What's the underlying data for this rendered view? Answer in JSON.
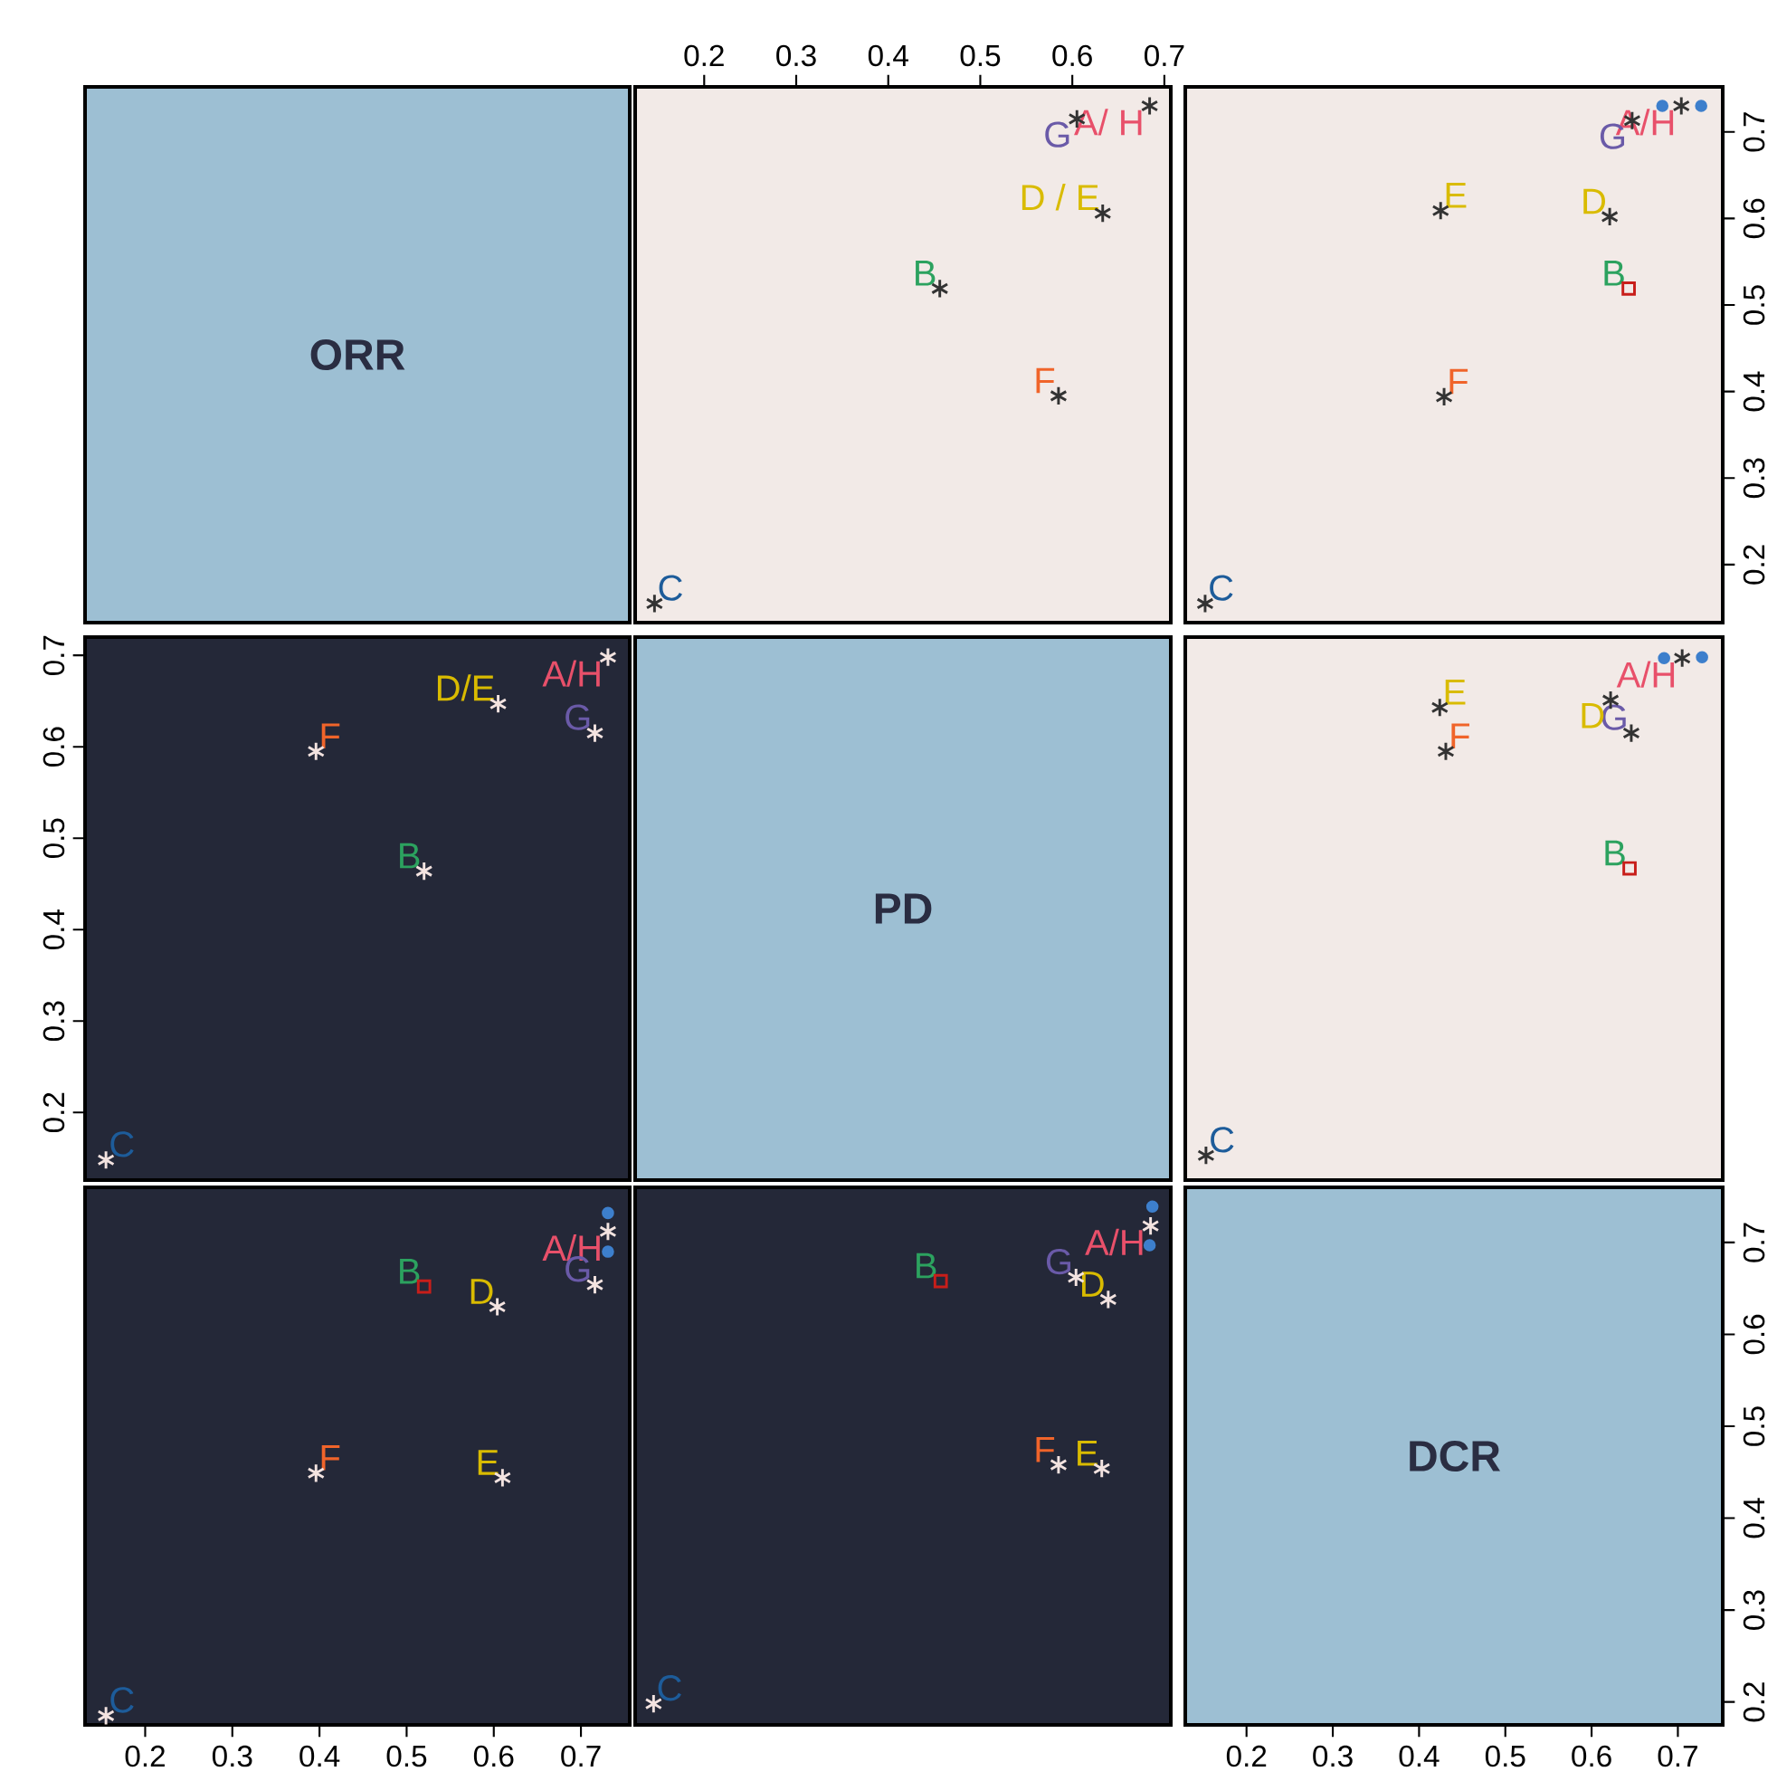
{
  "chart_data": [
    {
      "type": "other",
      "title": "ORR"
    },
    {
      "type": "scatter",
      "xlim": [
        0.125,
        0.707
      ],
      "ylim": [
        0.133,
        0.752
      ],
      "xticks": [
        0.2,
        0.3,
        0.4,
        0.5,
        0.6,
        0.7
      ],
      "tick_labels": "x",
      "series": [
        {
          "name": "A/ H",
          "color": "#333333",
          "marker": "cross",
          "x": [
            0.684
          ],
          "values": [
            0.73
          ]
        },
        {
          "name": "B",
          "color": "#333333",
          "marker": "cross",
          "x": [
            0.456
          ],
          "values": [
            0.519
          ]
        },
        {
          "name": "C",
          "color": "#333333",
          "marker": "cross",
          "x": [
            0.146
          ],
          "values": [
            0.155
          ]
        },
        {
          "name": "F",
          "color": "#333333",
          "marker": "cross",
          "x": [
            0.585
          ],
          "values": [
            0.395
          ]
        },
        {
          "name": "G",
          "color": "#333333",
          "marker": "cross",
          "x": [
            0.605
          ],
          "values": [
            0.715
          ]
        },
        {
          "name": "D / E",
          "color": "#333333",
          "marker": "cross",
          "x": [
            0.633
          ],
          "values": [
            0.606
          ]
        }
      ]
    },
    {
      "type": "scatter",
      "xlim": [
        0.129,
        0.752
      ],
      "ylim": [
        0.133,
        0.752
      ],
      "yticks": [
        0.2,
        0.3,
        0.4,
        0.5,
        0.6,
        0.7
      ],
      "tick_labels": "y",
      "series": [
        {
          "name": "A/H",
          "color": "#333333",
          "marker": "cross",
          "x": [
            0.704
          ],
          "values": [
            0.73
          ]
        },
        {
          "name": "B",
          "color": "#c81e1a",
          "marker": "square",
          "x": [
            0.643
          ],
          "values": [
            0.519
          ]
        },
        {
          "name": "C",
          "color": "#333333",
          "marker": "cross",
          "x": [
            0.152
          ],
          "values": [
            0.155
          ]
        },
        {
          "name": "F",
          "color": "#333333",
          "marker": "cross",
          "x": [
            0.429
          ],
          "values": [
            0.394
          ]
        },
        {
          "name": "G",
          "color": "#333333",
          "marker": "cross",
          "x": [
            0.647
          ],
          "values": [
            0.713
          ]
        },
        {
          "name": "D",
          "color": "#333333",
          "marker": "cross",
          "x": [
            0.621
          ],
          "values": [
            0.602
          ]
        },
        {
          "name": "E",
          "color": "#333333",
          "marker": "cross",
          "x": [
            0.425
          ],
          "values": [
            0.609
          ]
        },
        {
          "color": "#3d7fcc",
          "marker": "circle",
          "x": [
            0.682,
            0.727
          ],
          "values": [
            0.73,
            0.73
          ]
        }
      ]
    },
    {
      "type": "scatter",
      "xlim": [
        0.131,
        0.756
      ],
      "ylim": [
        0.126,
        0.72
      ],
      "yticks": [
        0.2,
        0.3,
        0.4,
        0.5,
        0.6,
        0.7
      ],
      "tick_labels": "y",
      "series": [
        {
          "name": "A/H",
          "color": "#f3e3e0",
          "marker": "cross",
          "x": [
            0.731
          ],
          "values": [
            0.698
          ]
        },
        {
          "name": "B",
          "color": "#f3e3e0",
          "marker": "cross",
          "x": [
            0.52
          ],
          "values": [
            0.464
          ]
        },
        {
          "name": "C",
          "color": "#f3e3e0",
          "marker": "cross",
          "x": [
            0.155
          ],
          "values": [
            0.148
          ]
        },
        {
          "name": "F",
          "color": "#f3e3e0",
          "marker": "cross",
          "x": [
            0.396
          ],
          "values": [
            0.595
          ]
        },
        {
          "name": "G",
          "color": "#f3e3e0",
          "marker": "cross",
          "x": [
            0.716
          ],
          "values": [
            0.615
          ]
        },
        {
          "name": "D/E",
          "color": "#f3e3e0",
          "marker": "cross",
          "x": [
            0.605
          ],
          "values": [
            0.647
          ]
        }
      ]
    },
    {
      "type": "other",
      "title": "PD"
    },
    {
      "type": "scatter",
      "xlim": [
        0.129,
        0.752
      ],
      "ylim": [
        0.126,
        0.72
      ],
      "tick_labels": false,
      "series": [
        {
          "name": "A/H",
          "color": "#333333",
          "marker": "cross",
          "x": [
            0.705
          ],
          "values": [
            0.697
          ]
        },
        {
          "name": "B",
          "color": "#c81e1a",
          "marker": "square",
          "x": [
            0.644
          ],
          "values": [
            0.467
          ]
        },
        {
          "name": "C",
          "color": "#333333",
          "marker": "cross",
          "x": [
            0.153
          ],
          "values": [
            0.153
          ]
        },
        {
          "name": "F",
          "color": "#333333",
          "marker": "cross",
          "x": [
            0.431
          ],
          "values": [
            0.595
          ]
        },
        {
          "name": "G",
          "color": "#333333",
          "marker": "cross",
          "x": [
            0.646
          ],
          "values": [
            0.615
          ]
        },
        {
          "name": "D",
          "color": "#333333",
          "marker": "cross",
          "x": [
            0.622
          ],
          "values": [
            0.651
          ]
        },
        {
          "name": "E",
          "color": "#333333",
          "marker": "cross",
          "x": [
            0.424
          ],
          "values": [
            0.643
          ]
        },
        {
          "color": "#3d7fcc",
          "marker": "circle",
          "x": [
            0.684,
            0.728
          ],
          "values": [
            0.697,
            0.698
          ]
        }
      ]
    },
    {
      "type": "scatter",
      "xlim": [
        0.131,
        0.756
      ],
      "ylim": [
        0.175,
        0.76
      ],
      "xticks": [
        0.2,
        0.3,
        0.4,
        0.5,
        0.6,
        0.7
      ],
      "tick_labels": "x",
      "series": [
        {
          "name": "A/H",
          "color": "#f3e3e0",
          "marker": "cross",
          "x": [
            0.731
          ],
          "values": [
            0.712
          ]
        },
        {
          "name": "B",
          "color": "#c81e1a",
          "marker": "square",
          "x": [
            0.52
          ],
          "values": [
            0.652
          ]
        },
        {
          "name": "C",
          "color": "#f3e3e0",
          "marker": "cross",
          "x": [
            0.155
          ],
          "values": [
            0.185
          ]
        },
        {
          "name": "F",
          "color": "#f3e3e0",
          "marker": "cross",
          "x": [
            0.396
          ],
          "values": [
            0.449
          ]
        },
        {
          "name": "G",
          "color": "#f3e3e0",
          "marker": "cross",
          "x": [
            0.716
          ],
          "values": [
            0.654
          ]
        },
        {
          "name": "D",
          "color": "#f3e3e0",
          "marker": "cross",
          "x": [
            0.604
          ],
          "values": [
            0.63
          ]
        },
        {
          "name": "E",
          "color": "#f3e3e0",
          "marker": "cross",
          "x": [
            0.61
          ],
          "values": [
            0.444
          ]
        },
        {
          "color": "#3d7fcc",
          "marker": "circle",
          "x": [
            0.731,
            0.731
          ],
          "values": [
            0.732,
            0.69
          ]
        }
      ]
    },
    {
      "type": "scatter",
      "xlim": [
        0.125,
        0.707
      ],
      "ylim": [
        0.175,
        0.76
      ],
      "tick_labels": false,
      "series": [
        {
          "name": "A/H",
          "color": "#f3e3e0",
          "marker": "cross",
          "x": [
            0.685
          ],
          "values": [
            0.718
          ]
        },
        {
          "name": "B",
          "color": "#c81e1a",
          "marker": "square",
          "x": [
            0.457
          ],
          "values": [
            0.658
          ]
        },
        {
          "name": "C",
          "color": "#f3e3e0",
          "marker": "cross",
          "x": [
            0.145
          ],
          "values": [
            0.198
          ]
        },
        {
          "name": "F",
          "color": "#f3e3e0",
          "marker": "cross",
          "x": [
            0.585
          ],
          "values": [
            0.458
          ]
        },
        {
          "name": "G",
          "color": "#f3e3e0",
          "marker": "cross",
          "x": [
            0.604
          ],
          "values": [
            0.662
          ]
        },
        {
          "name": "D",
          "color": "#f3e3e0",
          "marker": "cross",
          "x": [
            0.639
          ],
          "values": [
            0.638
          ]
        },
        {
          "name": "E",
          "color": "#f3e3e0",
          "marker": "cross",
          "x": [
            0.632
          ],
          "values": [
            0.454
          ]
        },
        {
          "color": "#3d7fcc",
          "marker": "circle",
          "x": [
            0.687,
            0.684
          ],
          "values": [
            0.739,
            0.697
          ]
        }
      ]
    },
    {
      "type": "scatter",
      "title": "DCR",
      "xlim": [
        0.129,
        0.752
      ],
      "ylim": [
        0.175,
        0.76
      ],
      "xticks": [
        0.2,
        0.3,
        0.4,
        0.5,
        0.6,
        0.7
      ],
      "yticks": [
        0.2,
        0.3,
        0.4,
        0.5,
        0.6,
        0.7
      ]
    }
  ]
}
